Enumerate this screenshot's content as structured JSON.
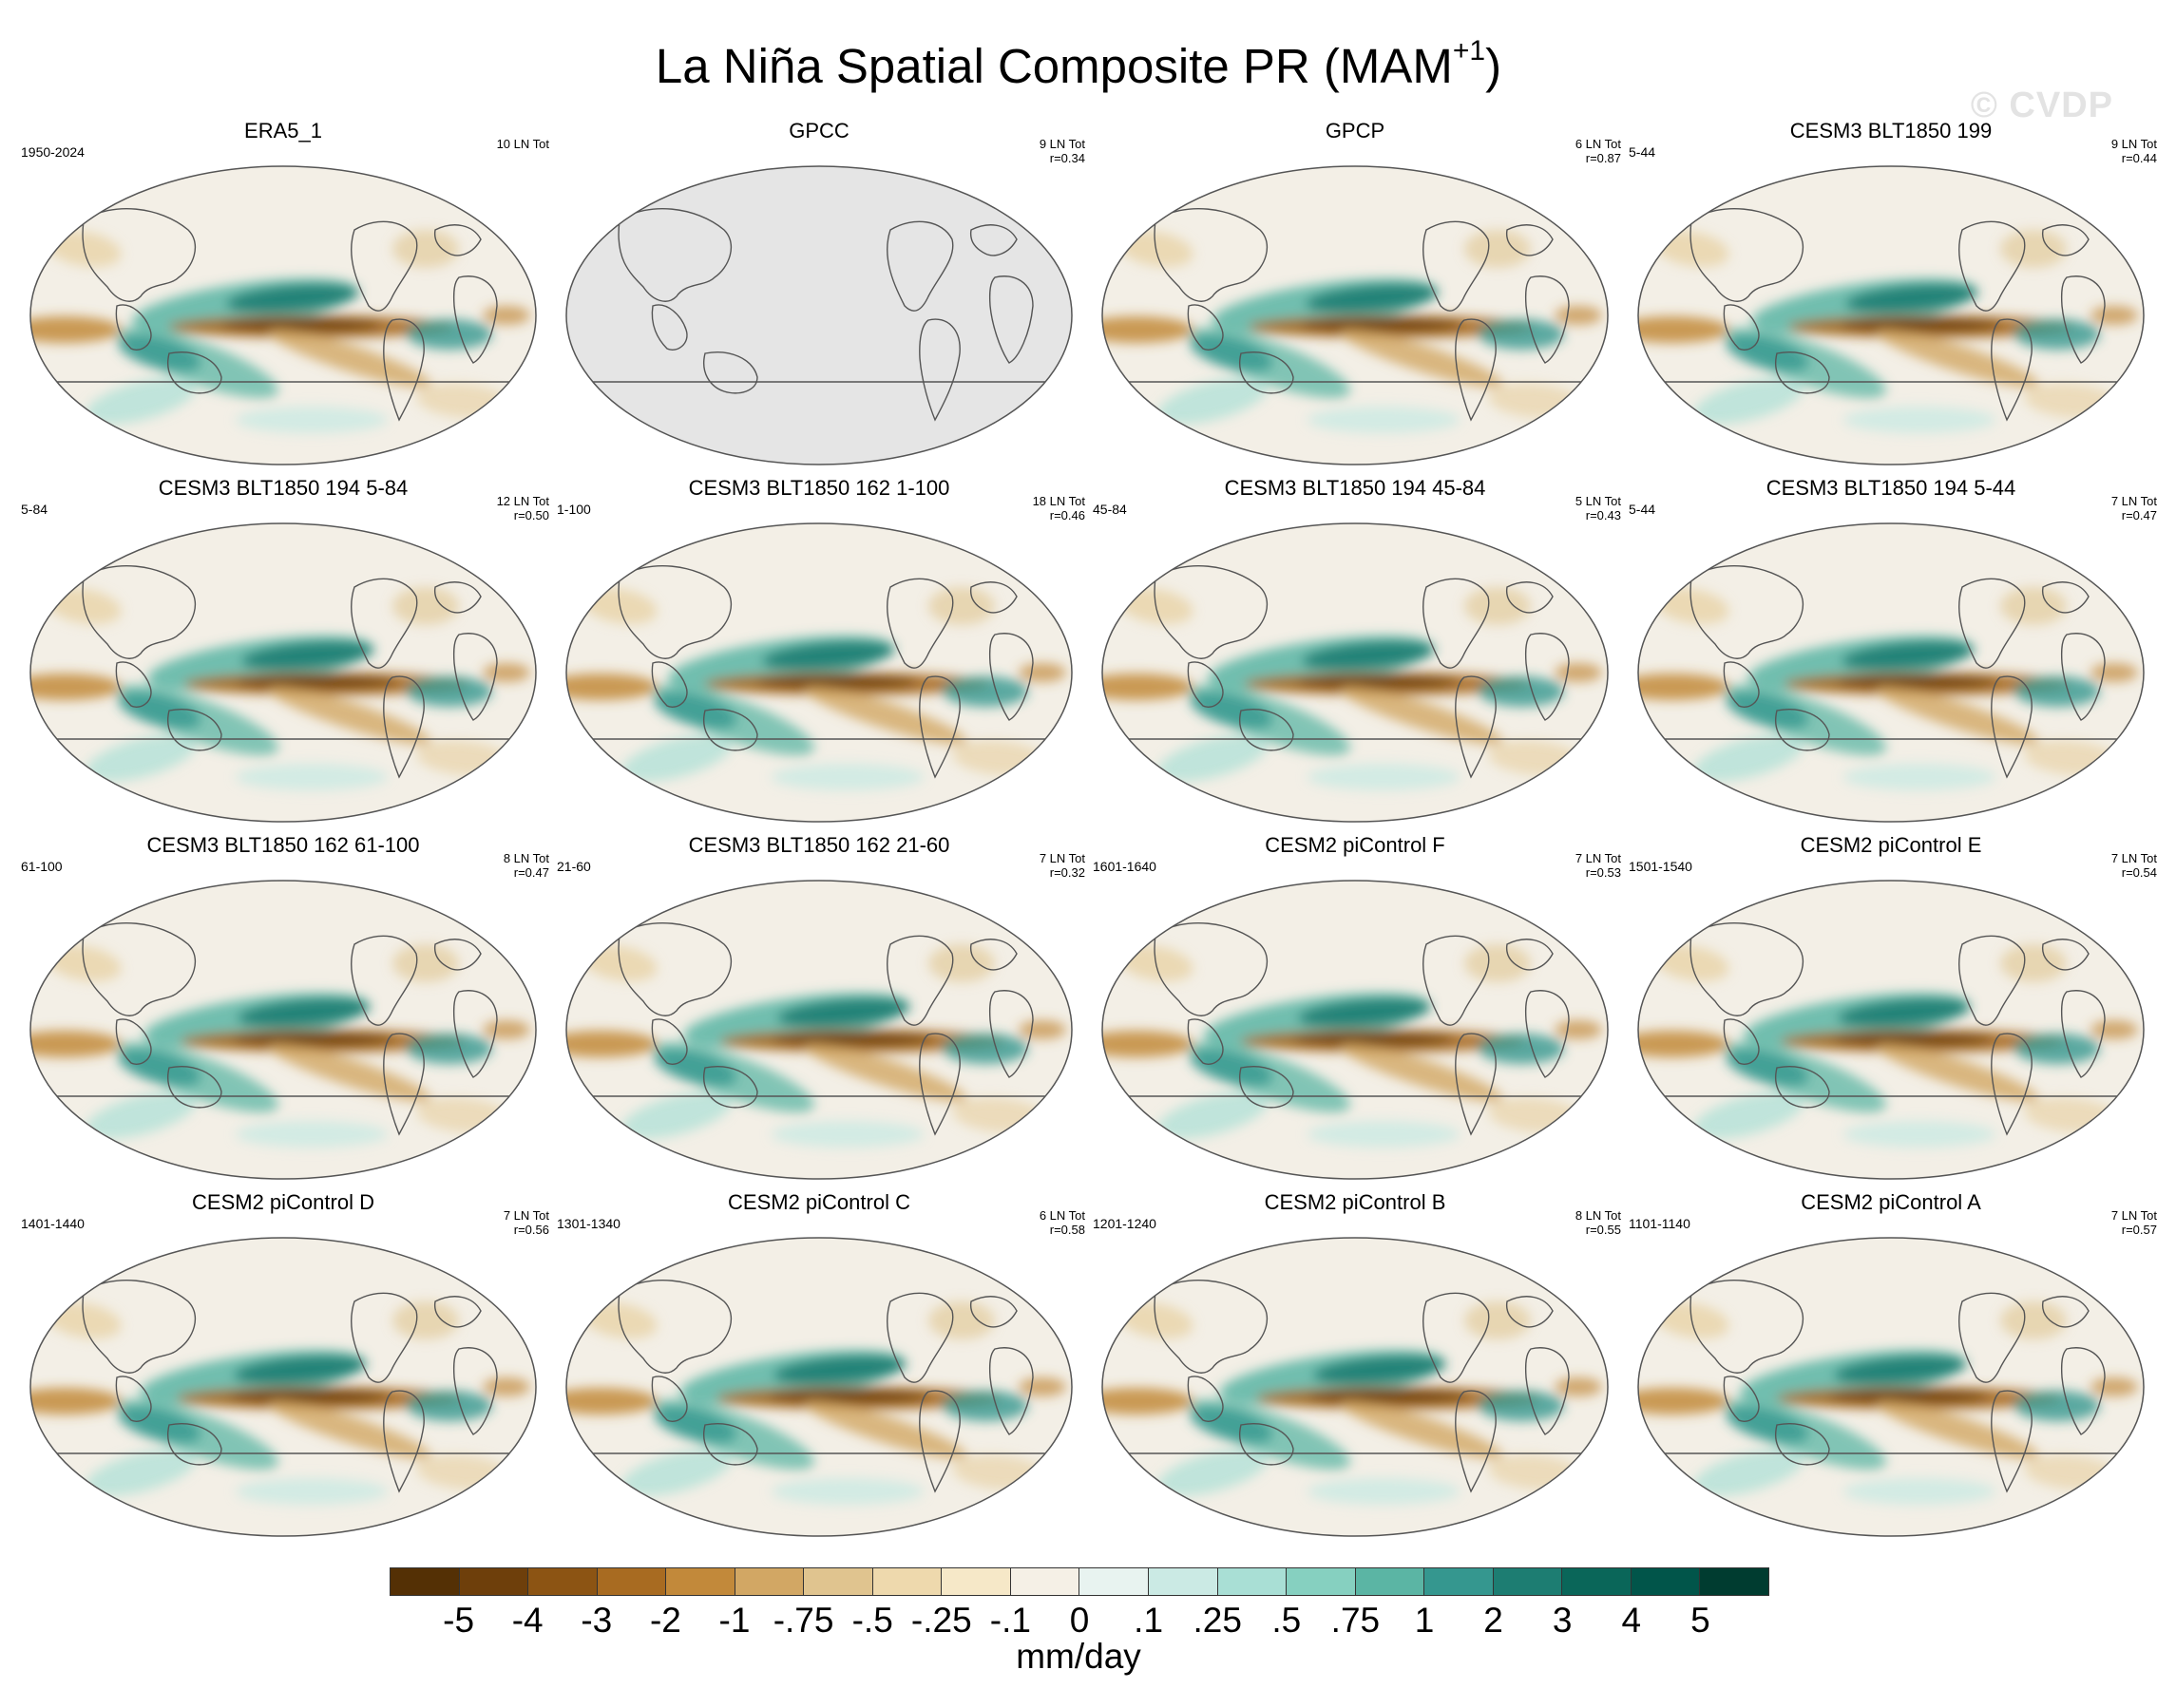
{
  "figure": {
    "title_main": "La Niña Spatial Composite PR (MAM",
    "title_sup": "+1",
    "title_close": ")",
    "watermark": "© CVDP"
  },
  "panels": [
    {
      "title": "ERA5_1",
      "left_label": "1950-2024",
      "stat1": "10 LN Tot",
      "stat2": "",
      "style": "obs"
    },
    {
      "title": "GPCC",
      "left_label": "",
      "stat1": "9 LN Tot",
      "stat2": "r=0.34",
      "style": "gray"
    },
    {
      "title": "GPCP",
      "left_label": "",
      "stat1": "6 LN Tot",
      "stat2": "r=0.87",
      "style": "obs"
    },
    {
      "title": "CESM3 BLT1850 199",
      "left_label": "5-44",
      "stat1": "9 LN Tot",
      "stat2": "r=0.44",
      "style": "model"
    },
    {
      "title": "CESM3 BLT1850 194 5-84",
      "left_label": "5-84",
      "stat1": "12 LN Tot",
      "stat2": "r=0.50",
      "style": "model"
    },
    {
      "title": "CESM3 BLT1850 162 1-100",
      "left_label": "1-100",
      "stat1": "18 LN Tot",
      "stat2": "r=0.46",
      "style": "model"
    },
    {
      "title": "CESM3 BLT1850 194 45-84",
      "left_label": "45-84",
      "stat1": "5 LN Tot",
      "stat2": "r=0.43",
      "style": "model"
    },
    {
      "title": "CESM3 BLT1850 194 5-44",
      "left_label": "5-44",
      "stat1": "7 LN Tot",
      "stat2": "r=0.47",
      "style": "model"
    },
    {
      "title": "CESM3 BLT1850 162 61-100",
      "left_label": "61-100",
      "stat1": "8 LN Tot",
      "stat2": "r=0.47",
      "style": "model"
    },
    {
      "title": "CESM3 BLT1850 162 21-60",
      "left_label": "21-60",
      "stat1": "7 LN Tot",
      "stat2": "r=0.32",
      "style": "model"
    },
    {
      "title": "CESM2 piControl F",
      "left_label": "1601-1640",
      "stat1": "7 LN Tot",
      "stat2": "r=0.53",
      "style": "model"
    },
    {
      "title": "CESM2 piControl E",
      "left_label": "1501-1540",
      "stat1": "7 LN Tot",
      "stat2": "r=0.54",
      "style": "model"
    },
    {
      "title": "CESM2 piControl D",
      "left_label": "1401-1440",
      "stat1": "7 LN Tot",
      "stat2": "r=0.56",
      "style": "model"
    },
    {
      "title": "CESM2 piControl C",
      "left_label": "1301-1340",
      "stat1": "6 LN Tot",
      "stat2": "r=0.58",
      "style": "model"
    },
    {
      "title": "CESM2 piControl B",
      "left_label": "1201-1240",
      "stat1": "8 LN Tot",
      "stat2": "r=0.55",
      "style": "model"
    },
    {
      "title": "CESM2 piControl A",
      "left_label": "1101-1140",
      "stat1": "7 LN Tot",
      "stat2": "r=0.57",
      "style": "model"
    }
  ],
  "colorbar": {
    "units": "mm/day",
    "colors": [
      "#543005",
      "#6e3f0b",
      "#8c5413",
      "#a86b21",
      "#c2893a",
      "#d2a764",
      "#e0c48f",
      "#eed9ad",
      "#f6e8c8",
      "#f5f0e6",
      "#e8f3f0",
      "#cbeae4",
      "#a9dfd5",
      "#86d0c0",
      "#5bb5a4",
      "#35978f",
      "#1d7d72",
      "#0a6659",
      "#01554a",
      "#003c30"
    ],
    "ticks": [
      "-5",
      "-4",
      "-3",
      "-2",
      "-1",
      "-.75",
      "-.5",
      "-.25",
      "-.1",
      "0",
      ".1",
      ".25",
      ".5",
      ".75",
      "1",
      "2",
      "3",
      "4",
      "5"
    ]
  }
}
